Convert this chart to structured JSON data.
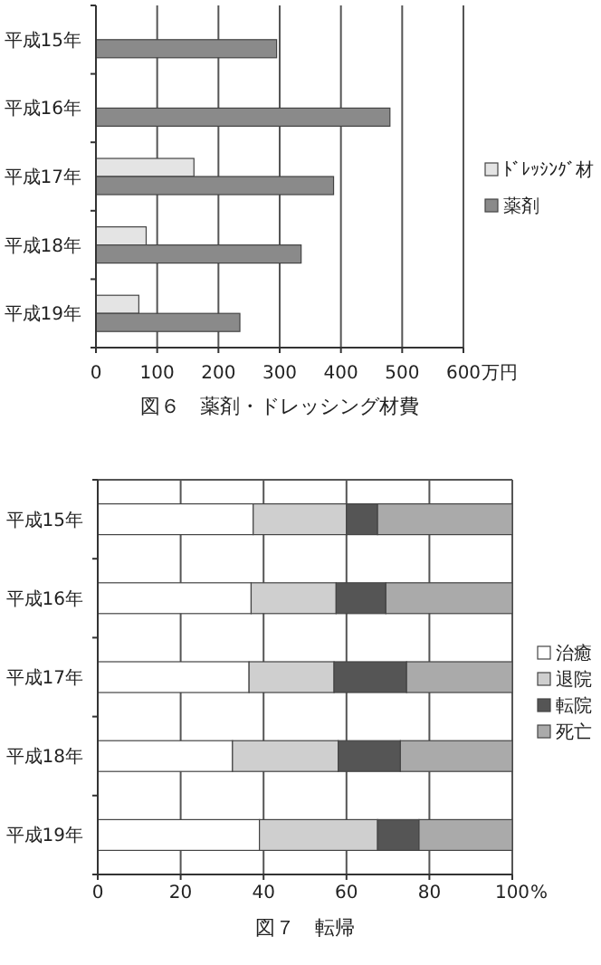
{
  "chart_data": [
    {
      "type": "bar",
      "orientation": "horizontal",
      "title": "図６　薬剤・ドレッシング材費",
      "xlabel": "万円",
      "categories": [
        "平成15年",
        "平成16年",
        "平成17年",
        "平成18年",
        "平成19年"
      ],
      "series": [
        {
          "name": "ﾄﾞﾚｯｼﾝｸﾞ材",
          "color": "#e4e4e4",
          "values": [
            null,
            null,
            160,
            82,
            70
          ]
        },
        {
          "name": "薬剤",
          "color": "#8a8a8a",
          "values": [
            295,
            480,
            388,
            335,
            235
          ]
        }
      ],
      "xlim": [
        0,
        600
      ],
      "xticks": [
        0,
        100,
        200,
        300,
        400,
        500,
        600
      ],
      "grid": "x",
      "legend": "right"
    },
    {
      "type": "bar",
      "orientation": "horizontal",
      "stacked": true,
      "title": "図７　転帰",
      "xlabel": "%",
      "categories": [
        "平成15年",
        "平成16年",
        "平成17年",
        "平成18年",
        "平成19年"
      ],
      "series": [
        {
          "name": "治癒",
          "color": "#ffffff",
          "values": [
            37.5,
            37,
            36.5,
            32.5,
            39
          ]
        },
        {
          "name": "退院",
          "color": "#cfcfcf",
          "values": [
            22.5,
            20.5,
            20.5,
            25.5,
            28.5
          ]
        },
        {
          "name": "転院",
          "color": "#555555",
          "values": [
            7.5,
            12,
            17.5,
            15,
            10
          ]
        },
        {
          "name": "死亡",
          "color": "#aaaaaa",
          "values": [
            32.5,
            30.5,
            25.5,
            27,
            22.5
          ]
        }
      ],
      "xlim": [
        0,
        100
      ],
      "xticks": [
        0,
        20,
        40,
        60,
        80,
        100
      ],
      "grid": "x",
      "legend": "right"
    }
  ]
}
